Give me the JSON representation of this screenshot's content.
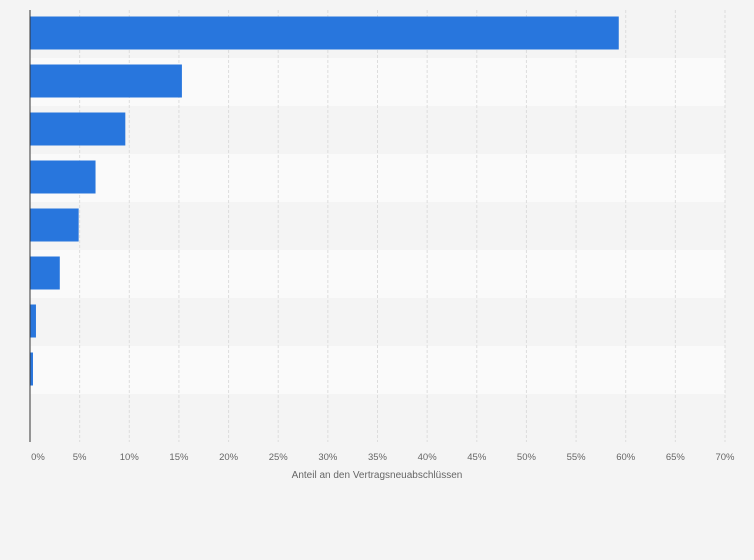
{
  "chart_data": {
    "type": "bar",
    "orientation": "horizontal",
    "categories": [
      "",
      "",
      "",
      "",
      "",
      "",
      "",
      "",
      ""
    ],
    "values": [
      59.3,
      15.3,
      9.6,
      6.6,
      4.9,
      3.0,
      0.6,
      0.3,
      0
    ],
    "xlabel": "Anteil an den Vertragsneuabschlüssen",
    "xlim": [
      0,
      70
    ],
    "xticks": [
      0,
      5,
      10,
      15,
      20,
      25,
      30,
      35,
      40,
      45,
      50,
      55,
      60,
      65,
      70
    ],
    "xtick_labels": [
      "0%",
      "5%",
      "10%",
      "15%",
      "20%",
      "25%",
      "30%",
      "35%",
      "40%",
      "45%",
      "50%",
      "55%",
      "60%",
      "65%",
      "70%"
    ],
    "grid": true,
    "bar_color": "#2876dd",
    "band_colors": [
      "#f4f4f4",
      "#fafafa"
    ],
    "gridline_color": "#dddddd",
    "axis_color": "#333333"
  }
}
